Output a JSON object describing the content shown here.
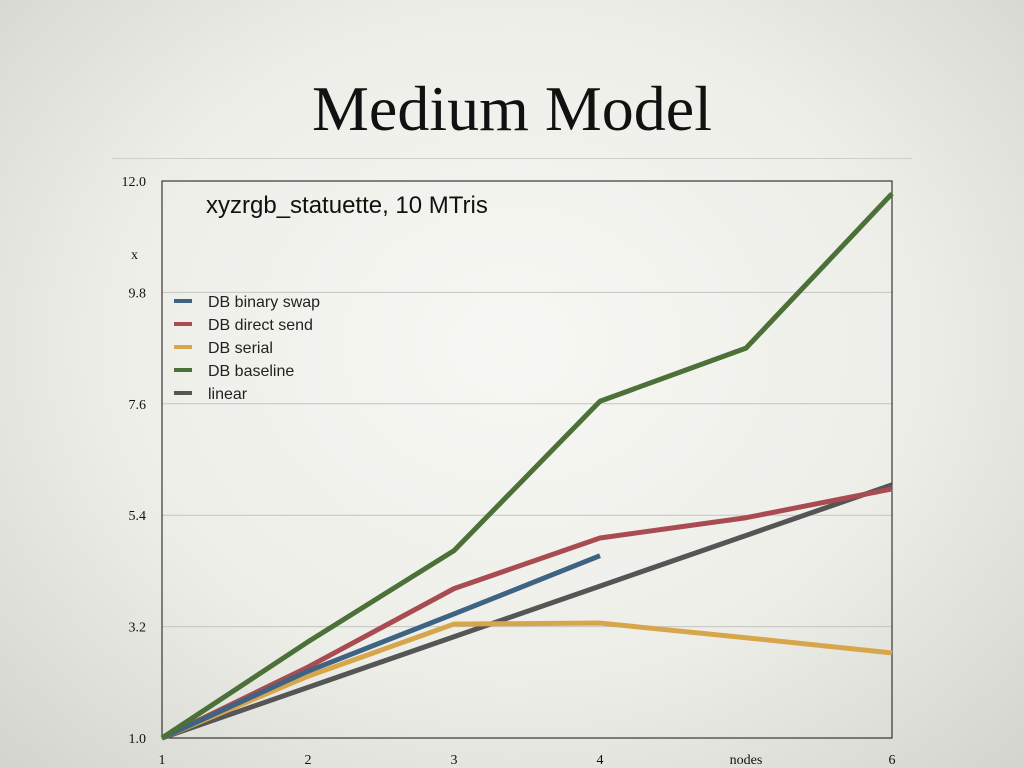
{
  "slide": {
    "title": "Medium Model"
  },
  "chart_data": {
    "type": "line",
    "title": "xyzrgb_statuette,  10 MTris",
    "ylabel": "x",
    "xlabel": "nodes",
    "x": [
      1,
      2,
      3,
      4,
      5,
      6
    ],
    "x_tick_labels": [
      "1",
      "2",
      "3",
      "4",
      "nodes",
      "6"
    ],
    "y_ticks": [
      1.0,
      3.2,
      5.4,
      7.6,
      9.8,
      12.0
    ],
    "y_tick_labels": [
      "1.0",
      "3.2",
      "5.4",
      "7.6",
      "9.8",
      "12.0"
    ],
    "xlim": [
      1,
      6
    ],
    "ylim": [
      1.0,
      12.0
    ],
    "grid": true,
    "legend_position": "left",
    "series": [
      {
        "name": "DB binary swap",
        "color": "#3f6383",
        "x": [
          1,
          2,
          3,
          4
        ],
        "values": [
          1.0,
          2.32,
          3.45,
          4.6
        ]
      },
      {
        "name": "DB direct send",
        "color": "#a84c52",
        "x": [
          1,
          2,
          3,
          4,
          5,
          6
        ],
        "values": [
          1.0,
          2.4,
          3.95,
          4.95,
          5.35,
          5.92
        ]
      },
      {
        "name": "DB serial",
        "color": "#d7a64b",
        "x": [
          1,
          2,
          3,
          4,
          5,
          6
        ],
        "values": [
          1.0,
          2.22,
          3.25,
          3.27,
          2.98,
          2.68
        ]
      },
      {
        "name": "DB baseline",
        "color": "#4b7038",
        "x": [
          1,
          2,
          3,
          4,
          5,
          6
        ],
        "values": [
          1.0,
          2.9,
          4.7,
          7.65,
          8.7,
          11.75
        ]
      },
      {
        "name": "linear",
        "color": "#555555",
        "x": [
          1,
          2,
          3,
          4,
          5,
          6
        ],
        "values": [
          1.0,
          2.0,
          3.0,
          4.0,
          5.0,
          6.0
        ]
      }
    ]
  }
}
